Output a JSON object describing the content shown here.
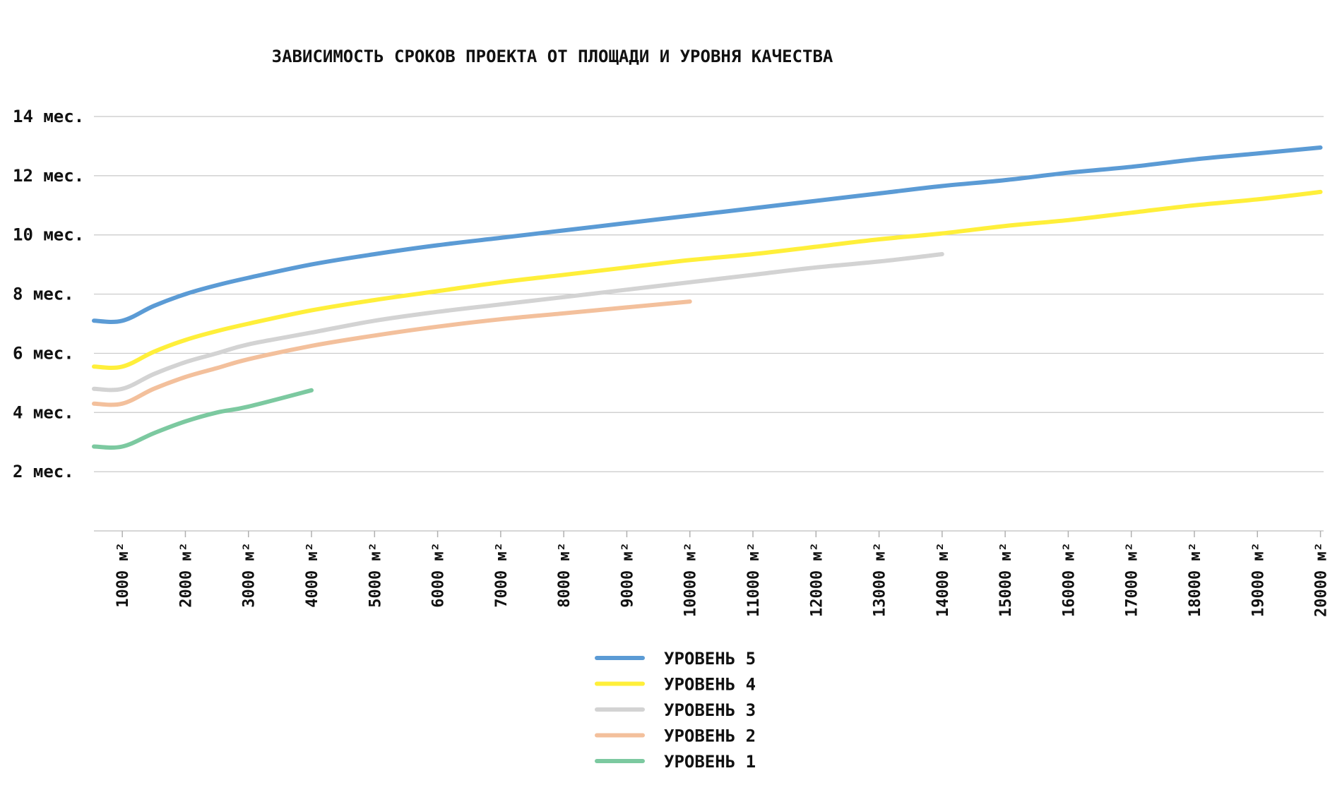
{
  "chart_data": {
    "type": "line",
    "title": "ЗАВИСИМОСТЬ СРОКОВ ПРОЕКТА ОТ ПЛОЩАДИ И УРОВНЯ КАЧЕСТВА",
    "xlabel": "",
    "ylabel": "",
    "x_unit_suffix": "м²",
    "xlim": [
      550,
      20050
    ],
    "ylim": [
      0,
      14
    ],
    "x_ticks": [
      1000,
      2000,
      3000,
      4000,
      5000,
      6000,
      7000,
      8000,
      9000,
      10000,
      11000,
      12000,
      13000,
      14000,
      15000,
      16000,
      17000,
      18000,
      19000,
      20000
    ],
    "x_tick_labels": [
      "1000 м²",
      "2000 м²",
      "3000 м²",
      "4000 м²",
      "5000 м²",
      "6000 м²",
      "7000 м²",
      "8000 м²",
      "9000 м²",
      "10000 м²",
      "11000 м²",
      "12000 м²",
      "13000 м²",
      "14000 м²",
      "15000 м²",
      "16000 м²",
      "17000 м²",
      "18000 м²",
      "19000 м²",
      "20000 м²"
    ],
    "y_ticks": [
      2,
      4,
      6,
      8,
      10,
      12,
      14
    ],
    "y_tick_labels": [
      "2 мес.",
      "4 мес.",
      "6 мес.",
      "8 мес.",
      "10 мес.",
      "12 мес.",
      "14 мес."
    ],
    "grid": true,
    "legend_position": "bottom-center",
    "series": [
      {
        "name": "УРОВЕНЬ 5",
        "color": "#5b9bd5",
        "points": [
          [
            550,
            7.1
          ],
          [
            1000,
            7.1
          ],
          [
            1500,
            7.6
          ],
          [
            2000,
            8.0
          ],
          [
            2500,
            8.3
          ],
          [
            3000,
            8.55
          ],
          [
            4000,
            9.0
          ],
          [
            5000,
            9.35
          ],
          [
            6000,
            9.65
          ],
          [
            7000,
            9.9
          ],
          [
            8000,
            10.15
          ],
          [
            9000,
            10.4
          ],
          [
            10000,
            10.65
          ],
          [
            11000,
            10.9
          ],
          [
            12000,
            11.15
          ],
          [
            13000,
            11.4
          ],
          [
            14000,
            11.65
          ],
          [
            15000,
            11.85
          ],
          [
            16000,
            12.1
          ],
          [
            17000,
            12.3
          ],
          [
            18000,
            12.55
          ],
          [
            19000,
            12.75
          ],
          [
            20000,
            12.95
          ]
        ]
      },
      {
        "name": "УРОВЕНЬ 4",
        "color": "#ffef3a",
        "points": [
          [
            550,
            5.55
          ],
          [
            1000,
            5.55
          ],
          [
            1500,
            6.05
          ],
          [
            2000,
            6.45
          ],
          [
            2500,
            6.75
          ],
          [
            3000,
            7.0
          ],
          [
            4000,
            7.45
          ],
          [
            5000,
            7.8
          ],
          [
            6000,
            8.1
          ],
          [
            7000,
            8.4
          ],
          [
            8000,
            8.65
          ],
          [
            9000,
            8.9
          ],
          [
            10000,
            9.15
          ],
          [
            11000,
            9.35
          ],
          [
            12000,
            9.6
          ],
          [
            13000,
            9.85
          ],
          [
            14000,
            10.05
          ],
          [
            15000,
            10.3
          ],
          [
            16000,
            10.5
          ],
          [
            17000,
            10.75
          ],
          [
            18000,
            11.0
          ],
          [
            19000,
            11.2
          ],
          [
            20000,
            11.45
          ]
        ]
      },
      {
        "name": "УРОВЕНЬ 3",
        "color": "#d3d3d3",
        "points": [
          [
            550,
            4.8
          ],
          [
            1000,
            4.8
          ],
          [
            1500,
            5.3
          ],
          [
            2000,
            5.7
          ],
          [
            2500,
            6.0
          ],
          [
            3000,
            6.3
          ],
          [
            4000,
            6.7
          ],
          [
            5000,
            7.1
          ],
          [
            6000,
            7.4
          ],
          [
            7000,
            7.65
          ],
          [
            8000,
            7.9
          ],
          [
            9000,
            8.15
          ],
          [
            10000,
            8.4
          ],
          [
            11000,
            8.65
          ],
          [
            12000,
            8.9
          ],
          [
            13000,
            9.1
          ],
          [
            14000,
            9.35
          ]
        ]
      },
      {
        "name": "УРОВЕНЬ 2",
        "color": "#f3c09c",
        "points": [
          [
            550,
            4.3
          ],
          [
            1000,
            4.3
          ],
          [
            1500,
            4.8
          ],
          [
            2000,
            5.2
          ],
          [
            2500,
            5.5
          ],
          [
            3000,
            5.8
          ],
          [
            4000,
            6.25
          ],
          [
            5000,
            6.6
          ],
          [
            6000,
            6.9
          ],
          [
            7000,
            7.15
          ],
          [
            8000,
            7.35
          ],
          [
            9000,
            7.55
          ],
          [
            10000,
            7.75
          ]
        ]
      },
      {
        "name": "УРОВЕНЬ 1",
        "color": "#7cc9a0",
        "points": [
          [
            550,
            2.85
          ],
          [
            1000,
            2.85
          ],
          [
            1500,
            3.3
          ],
          [
            2000,
            3.7
          ],
          [
            2500,
            4.0
          ],
          [
            3000,
            4.2
          ],
          [
            4000,
            4.75
          ]
        ]
      }
    ]
  }
}
